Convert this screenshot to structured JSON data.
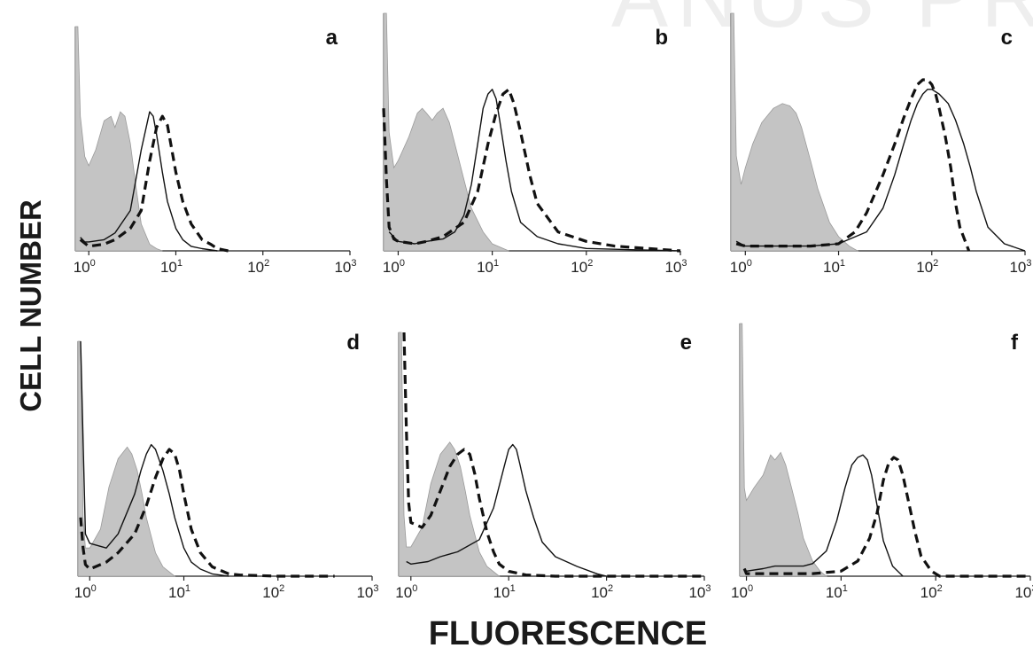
{
  "figure": {
    "ylabel": "CELL NUMBER",
    "xlabel": "FLUORESCENCE"
  },
  "chart_data": [
    {
      "type": "area",
      "panel": "a",
      "x_scale": "log",
      "xlim": [
        0.7,
        1000
      ],
      "tick_labels": [
        "10^0",
        "10^1",
        "10^2",
        "10^3"
      ],
      "series": [
        {
          "style": "gray-filled",
          "x": [
            0.7,
            0.75,
            0.8,
            0.9,
            1.0,
            1.2,
            1.5,
            1.8,
            2.0,
            2.3,
            2.6,
            3.0,
            3.5,
            4.0,
            5.0,
            6.0,
            7.0
          ],
          "y": [
            100,
            100,
            60,
            42,
            38,
            45,
            58,
            60,
            55,
            62,
            60,
            48,
            28,
            12,
            3,
            1,
            0
          ]
        },
        {
          "style": "solid",
          "x": [
            0.8,
            0.9,
            1.0,
            1.5,
            2.0,
            3.0,
            4.0,
            5.0,
            5.5,
            6.0,
            7.0,
            8.0,
            10,
            12,
            15,
            20,
            30
          ],
          "y": [
            6,
            4,
            4,
            5,
            8,
            18,
            45,
            62,
            60,
            52,
            35,
            22,
            10,
            5,
            2,
            1,
            0
          ]
        },
        {
          "style": "dashed",
          "x": [
            0.8,
            1.0,
            1.5,
            2.0,
            3.0,
            4.0,
            5.0,
            6.0,
            7.0,
            8.0,
            9.0,
            10,
            12,
            15,
            20,
            25,
            30,
            40
          ],
          "y": [
            5,
            2,
            3,
            5,
            10,
            18,
            40,
            55,
            60,
            56,
            45,
            35,
            22,
            12,
            5,
            3,
            1,
            0
          ]
        }
      ]
    },
    {
      "type": "area",
      "panel": "b",
      "x_scale": "log",
      "xlim": [
        0.7,
        1000
      ],
      "tick_labels": [
        "10^0",
        "10^1",
        "10^2",
        "10^3"
      ],
      "series": [
        {
          "style": "gray-filled",
          "x": [
            0.7,
            0.75,
            0.8,
            0.9,
            1.0,
            1.3,
            1.6,
            1.8,
            2.0,
            2.3,
            2.6,
            3.0,
            3.5,
            4.0,
            5.0,
            6.0,
            8.0,
            10,
            15
          ],
          "y": [
            100,
            100,
            50,
            35,
            38,
            48,
            58,
            60,
            58,
            55,
            58,
            60,
            54,
            45,
            30,
            18,
            8,
            3,
            0
          ]
        },
        {
          "style": "solid",
          "x": [
            0.8,
            1.0,
            1.5,
            2.0,
            3.0,
            4.0,
            5.0,
            6.0,
            7.0,
            8.0,
            9.0,
            10,
            11,
            12,
            14,
            16,
            20,
            30,
            50,
            100,
            300,
            1000
          ],
          "y": [
            8,
            4,
            3,
            4,
            5,
            8,
            15,
            28,
            45,
            60,
            66,
            68,
            64,
            55,
            38,
            25,
            12,
            6,
            3,
            1,
            0.5,
            0
          ]
        },
        {
          "style": "dashed",
          "x": [
            0.7,
            0.75,
            0.8,
            0.9,
            1.0,
            1.5,
            2.0,
            3.0,
            5.0,
            7.0,
            9.0,
            11,
            13,
            15,
            17,
            20,
            25,
            30,
            50,
            100,
            200,
            1000
          ],
          "y": [
            60,
            30,
            10,
            5,
            4,
            3,
            4,
            6,
            12,
            25,
            45,
            58,
            66,
            68,
            62,
            50,
            32,
            20,
            8,
            4,
            2,
            0
          ]
        }
      ]
    },
    {
      "type": "area",
      "panel": "c",
      "x_scale": "log",
      "xlim": [
        0.7,
        1000
      ],
      "tick_labels": [
        "10^0",
        "10^1",
        "10^2",
        "10^3"
      ],
      "series": [
        {
          "style": "gray-filled",
          "x": [
            0.7,
            0.75,
            0.8,
            0.9,
            1.0,
            1.2,
            1.5,
            2.0,
            2.5,
            3.0,
            3.5,
            4.0,
            5.0,
            6.0,
            8.0,
            10,
            13,
            16
          ],
          "y": [
            100,
            100,
            40,
            28,
            35,
            45,
            54,
            60,
            62,
            61,
            58,
            52,
            38,
            26,
            12,
            6,
            2,
            0
          ]
        },
        {
          "style": "solid",
          "x": [
            0.8,
            1.0,
            2.0,
            5.0,
            10,
            20,
            30,
            40,
            50,
            60,
            70,
            80,
            90,
            100,
            120,
            150,
            180,
            220,
            260,
            300,
            400,
            600,
            1000
          ],
          "y": [
            4,
            2,
            2,
            2,
            3,
            8,
            18,
            32,
            45,
            55,
            62,
            66,
            68,
            68,
            66,
            62,
            55,
            45,
            35,
            25,
            10,
            3,
            0
          ]
        },
        {
          "style": "dashed",
          "x": [
            0.8,
            1.0,
            2.0,
            5.0,
            10,
            15,
            20,
            30,
            40,
            50,
            60,
            70,
            80,
            90,
            100,
            110,
            120,
            140,
            160,
            180,
            200,
            250
          ],
          "y": [
            3,
            2,
            2,
            2,
            3,
            8,
            16,
            32,
            45,
            56,
            64,
            70,
            72,
            72,
            70,
            66,
            60,
            48,
            35,
            20,
            10,
            0
          ]
        }
      ]
    },
    {
      "type": "area",
      "panel": "d",
      "x_scale": "log",
      "xlim": [
        0.75,
        1000
      ],
      "tick_labels": [
        "10^0",
        "10^1",
        "10^2",
        "10^3"
      ],
      "series": [
        {
          "style": "gray-filled",
          "x": [
            0.75,
            0.8,
            0.85,
            0.9,
            1.0,
            1.3,
            1.6,
            2.0,
            2.5,
            2.8,
            3.2,
            3.6,
            4.0,
            5.0,
            6.0,
            8.0
          ],
          "y": [
            100,
            100,
            25,
            12,
            12,
            20,
            38,
            50,
            55,
            52,
            45,
            35,
            25,
            10,
            4,
            0
          ]
        },
        {
          "style": "solid",
          "x": [
            0.8,
            0.9,
            1.0,
            1.5,
            2.0,
            3.0,
            3.5,
            4.0,
            4.5,
            5.0,
            6.0,
            7.0,
            8.0,
            10,
            12,
            15,
            20,
            30
          ],
          "y": [
            100,
            18,
            14,
            12,
            18,
            35,
            45,
            52,
            56,
            54,
            45,
            35,
            25,
            12,
            6,
            3,
            1,
            0
          ]
        },
        {
          "style": "dashed",
          "x": [
            0.8,
            0.85,
            0.9,
            1.0,
            1.5,
            2.0,
            3.0,
            4.0,
            5.0,
            6.0,
            7.0,
            8.0,
            9.0,
            10,
            12,
            15,
            20,
            30,
            40,
            100,
            400
          ],
          "y": [
            25,
            12,
            5,
            3,
            6,
            10,
            18,
            30,
            42,
            50,
            54,
            52,
            45,
            35,
            20,
            10,
            4,
            1,
            0.5,
            0,
            0
          ]
        }
      ]
    },
    {
      "type": "area",
      "panel": "e",
      "x_scale": "log",
      "xlim": [
        0.75,
        1000
      ],
      "tick_labels": [
        "10^0",
        "10^1",
        "10^2",
        "10^3"
      ],
      "series": [
        {
          "style": "gray-filled",
          "x": [
            0.75,
            0.8,
            0.85,
            0.9,
            1.0,
            1.3,
            1.6,
            2.0,
            2.5,
            2.8,
            3.2,
            3.6,
            4.0,
            5.0,
            6.0,
            8.0
          ],
          "y": [
            100,
            100,
            25,
            12,
            12,
            20,
            38,
            50,
            55,
            52,
            45,
            35,
            25,
            10,
            4,
            0
          ]
        },
        {
          "style": "solid",
          "x": [
            0.9,
            1.0,
            1.5,
            2.0,
            3.0,
            5.0,
            7.0,
            9.0,
            10,
            11,
            12,
            13,
            15,
            18,
            22,
            30,
            50,
            80,
            100
          ],
          "y": [
            6,
            5,
            6,
            8,
            10,
            15,
            28,
            45,
            52,
            54,
            52,
            46,
            35,
            24,
            14,
            8,
            4,
            1,
            0
          ]
        },
        {
          "style": "dashed",
          "x": [
            0.85,
            0.9,
            0.95,
            1.0,
            1.3,
            1.6,
            2.0,
            2.5,
            3.0,
            3.5,
            4.0,
            4.5,
            5.0,
            6.0,
            7.0,
            8.0,
            10,
            15,
            30,
            1000
          ],
          "y": [
            100,
            60,
            30,
            22,
            20,
            25,
            35,
            45,
            50,
            52,
            50,
            42,
            32,
            18,
            10,
            5,
            2,
            0.5,
            0,
            0
          ]
        }
      ]
    },
    {
      "type": "area",
      "panel": "f",
      "x_scale": "log",
      "xlim": [
        0.85,
        1000
      ],
      "tick_labels": [
        "10^0",
        "10^1",
        "10^2",
        "10^3"
      ],
      "series": [
        {
          "style": "gray-filled",
          "x": [
            0.85,
            0.9,
            0.95,
            1.0,
            1.2,
            1.5,
            1.8,
            2.0,
            2.3,
            2.6,
            3.0,
            3.5,
            4.0,
            5.0,
            6.0,
            7.0
          ],
          "y": [
            100,
            100,
            35,
            30,
            35,
            40,
            48,
            46,
            49,
            44,
            35,
            25,
            15,
            6,
            2,
            0
          ]
        },
        {
          "style": "solid",
          "x": [
            0.95,
            1.0,
            1.5,
            2.0,
            3.0,
            4.0,
            5.0,
            7.0,
            9.0,
            11,
            13,
            15,
            17,
            19,
            21,
            24,
            28,
            35,
            45
          ],
          "y": [
            3,
            2,
            3,
            4,
            4,
            4,
            5,
            10,
            22,
            35,
            44,
            47,
            48,
            46,
            40,
            28,
            14,
            4,
            0
          ]
        },
        {
          "style": "dashed",
          "x": [
            0.95,
            1.0,
            2.0,
            5.0,
            10,
            15,
            20,
            24,
            28,
            32,
            36,
            40,
            45,
            50,
            60,
            70,
            90,
            110,
            1000
          ],
          "y": [
            3,
            1,
            1,
            1,
            2,
            6,
            15,
            25,
            38,
            45,
            47,
            46,
            40,
            32,
            18,
            8,
            2,
            0,
            0
          ]
        }
      ]
    }
  ]
}
